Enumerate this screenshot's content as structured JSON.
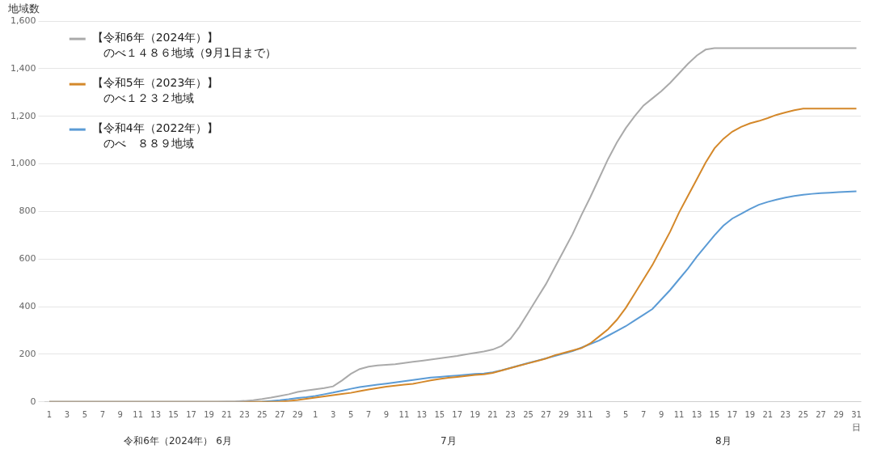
{
  "chart_data": {
    "type": "line",
    "ylabel": "地域数",
    "xlabel": "日",
    "x_group_labels": [
      "令和6年（2024年） 6月",
      "7月",
      "8月"
    ],
    "categories": [
      "1",
      null,
      "3",
      null,
      "5",
      null,
      "7",
      null,
      "9",
      null,
      "11",
      null,
      "13",
      null,
      "15",
      null,
      "17",
      null,
      "19",
      null,
      "21",
      null,
      "23",
      null,
      "25",
      null,
      "27",
      null,
      "29",
      null,
      "1",
      null,
      "3",
      null,
      "5",
      null,
      "7",
      null,
      "9",
      null,
      "11",
      null,
      "13",
      null,
      "15",
      null,
      "17",
      null,
      "19",
      null,
      "21",
      null,
      "23",
      null,
      "25",
      null,
      "27",
      null,
      "29",
      null,
      "31",
      "1",
      null,
      "3",
      null,
      "5",
      null,
      "7",
      null,
      "9",
      null,
      "11",
      null,
      "13",
      null,
      "15",
      null,
      "17",
      null,
      "19",
      null,
      "21",
      null,
      "23",
      null,
      "25",
      null,
      "27",
      null,
      "29",
      null,
      "31"
    ],
    "series": [
      {
        "color": "#aaaaaa",
        "values": [
          0,
          0,
          0,
          0,
          0,
          0,
          0,
          0,
          0,
          0,
          0,
          0,
          0,
          0,
          0,
          0,
          0,
          0,
          0,
          0,
          1,
          2,
          4,
          7,
          12,
          18,
          25,
          32,
          42,
          48,
          53,
          58,
          65,
          90,
          118,
          138,
          148,
          153,
          156,
          158,
          163,
          168,
          173,
          178,
          183,
          188,
          193,
          200,
          206,
          212,
          220,
          235,
          265,
          315,
          375,
          435,
          495,
          565,
          635,
          705,
          785,
          860,
          940,
          1020,
          1090,
          1150,
          1200,
          1245,
          1275,
          1305,
          1340,
          1380,
          1420,
          1455,
          1480,
          1486,
          1486,
          1486,
          1486,
          1486,
          1486,
          1486,
          1486,
          1486,
          1486,
          1486,
          1486,
          1486,
          1486,
          1486,
          1486,
          1486
        ]
      },
      {
        "color": "#d4882a",
        "values": [
          0,
          0,
          0,
          0,
          0,
          0,
          0,
          0,
          0,
          0,
          0,
          0,
          0,
          0,
          0,
          0,
          0,
          0,
          0,
          0,
          0,
          0,
          0,
          0,
          0,
          0,
          1,
          4,
          8,
          13,
          18,
          23,
          28,
          33,
          38,
          45,
          52,
          58,
          64,
          68,
          72,
          76,
          83,
          90,
          96,
          101,
          105,
          109,
          113,
          116,
          122,
          132,
          142,
          152,
          162,
          172,
          182,
          196,
          206,
          216,
          226,
          246,
          275,
          305,
          345,
          395,
          455,
          515,
          575,
          645,
          715,
          795,
          865,
          935,
          1005,
          1065,
          1105,
          1135,
          1155,
          1170,
          1180,
          1192,
          1206,
          1216,
          1225,
          1232,
          1232,
          1232,
          1232,
          1232,
          1232,
          1232
        ]
      },
      {
        "color": "#5b9bd5",
        "values": [
          0,
          0,
          0,
          0,
          0,
          0,
          0,
          0,
          0,
          0,
          0,
          0,
          0,
          0,
          0,
          0,
          0,
          0,
          0,
          0,
          0,
          0,
          0,
          0,
          1,
          4,
          7,
          11,
          16,
          20,
          25,
          32,
          39,
          47,
          55,
          62,
          67,
          72,
          77,
          82,
          87,
          92,
          97,
          102,
          105,
          108,
          111,
          114,
          117,
          119,
          124,
          133,
          143,
          153,
          163,
          173,
          183,
          193,
          203,
          213,
          228,
          243,
          258,
          278,
          298,
          318,
          342,
          366,
          390,
          430,
          470,
          515,
          560,
          610,
          655,
          700,
          740,
          770,
          790,
          810,
          828,
          840,
          850,
          858,
          865,
          870,
          874,
          877,
          879,
          881,
          883,
          885
        ]
      }
    ],
    "ylim": [
      0,
      1600
    ],
    "yticks": [
      0,
      200,
      400,
      600,
      800,
      1000,
      1200,
      1400,
      1600
    ],
    "grid": true,
    "annotations": [
      {
        "lines": [
          "【令和6年（2024年）】",
          "のべ１４８６地域（9月1日まで）"
        ]
      },
      {
        "lines": [
          "【令和5年（2023年）】",
          "のべ１２３２地域"
        ]
      },
      {
        "lines": [
          "【令和4年（2022年）】",
          "のべ　８８９地域"
        ]
      }
    ]
  }
}
